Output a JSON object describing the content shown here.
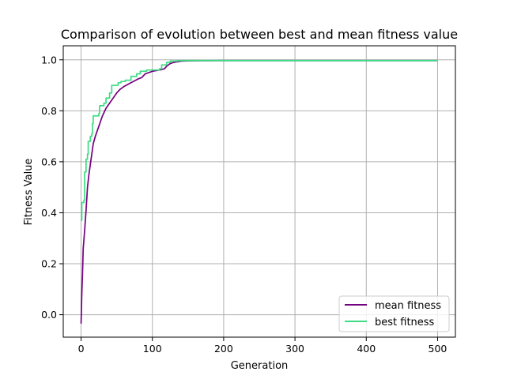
{
  "chart_data": {
    "type": "line",
    "title": "Comparison of evolution between best and mean fitness value",
    "xlabel": "Generation",
    "ylabel": "Fitness Value",
    "xlim": [
      -25,
      525
    ],
    "ylim": [
      -0.088,
      1.055
    ],
    "xticks": [
      0,
      100,
      200,
      300,
      400,
      500
    ],
    "yticks": [
      0.0,
      0.2,
      0.4,
      0.6,
      0.8,
      1.0
    ],
    "xtick_labels": [
      "0",
      "100",
      "200",
      "300",
      "400",
      "500"
    ],
    "ytick_labels": [
      "0.0",
      "0.2",
      "0.4",
      "0.6",
      "0.8",
      "1.0"
    ],
    "grid": true,
    "legend": "lower-right",
    "series": [
      {
        "name": "mean fitness",
        "color": "#73007f",
        "points": [
          [
            0,
            -0.035
          ],
          [
            1,
            0.08
          ],
          [
            2,
            0.16
          ],
          [
            3,
            0.26
          ],
          [
            5,
            0.33
          ],
          [
            7,
            0.41
          ],
          [
            9,
            0.5
          ],
          [
            11,
            0.55
          ],
          [
            13,
            0.59
          ],
          [
            15,
            0.63
          ],
          [
            17,
            0.67
          ],
          [
            20,
            0.7
          ],
          [
            25,
            0.74
          ],
          [
            30,
            0.78
          ],
          [
            35,
            0.81
          ],
          [
            40,
            0.83
          ],
          [
            45,
            0.85
          ],
          [
            50,
            0.87
          ],
          [
            55,
            0.885
          ],
          [
            60,
            0.895
          ],
          [
            70,
            0.91
          ],
          [
            80,
            0.925
          ],
          [
            85,
            0.93
          ],
          [
            90,
            0.945
          ],
          [
            95,
            0.95
          ],
          [
            100,
            0.955
          ],
          [
            110,
            0.96
          ],
          [
            117,
            0.965
          ],
          [
            120,
            0.975
          ],
          [
            125,
            0.985
          ],
          [
            130,
            0.99
          ],
          [
            140,
            0.995
          ],
          [
            150,
            0.996
          ],
          [
            200,
            0.997
          ],
          [
            300,
            0.997
          ],
          [
            400,
            0.997
          ],
          [
            500,
            0.997
          ]
        ]
      },
      {
        "name": "best fitness",
        "color": "#3ddc84",
        "step": true,
        "points": [
          [
            0,
            0.37
          ],
          [
            1,
            0.44
          ],
          [
            4,
            0.45
          ],
          [
            5,
            0.56
          ],
          [
            7,
            0.61
          ],
          [
            9,
            0.63
          ],
          [
            10,
            0.68
          ],
          [
            13,
            0.7
          ],
          [
            15,
            0.71
          ],
          [
            16,
            0.75
          ],
          [
            17,
            0.78
          ],
          [
            25,
            0.79
          ],
          [
            26,
            0.82
          ],
          [
            32,
            0.83
          ],
          [
            35,
            0.85
          ],
          [
            40,
            0.87
          ],
          [
            43,
            0.9
          ],
          [
            52,
            0.91
          ],
          [
            56,
            0.915
          ],
          [
            62,
            0.92
          ],
          [
            66,
            0.92
          ],
          [
            70,
            0.935
          ],
          [
            78,
            0.945
          ],
          [
            83,
            0.955
          ],
          [
            92,
            0.96
          ],
          [
            110,
            0.965
          ],
          [
            113,
            0.98
          ],
          [
            120,
            0.99
          ],
          [
            125,
            0.995
          ],
          [
            135,
            0.997
          ],
          [
            500,
            0.997
          ]
        ]
      }
    ]
  }
}
